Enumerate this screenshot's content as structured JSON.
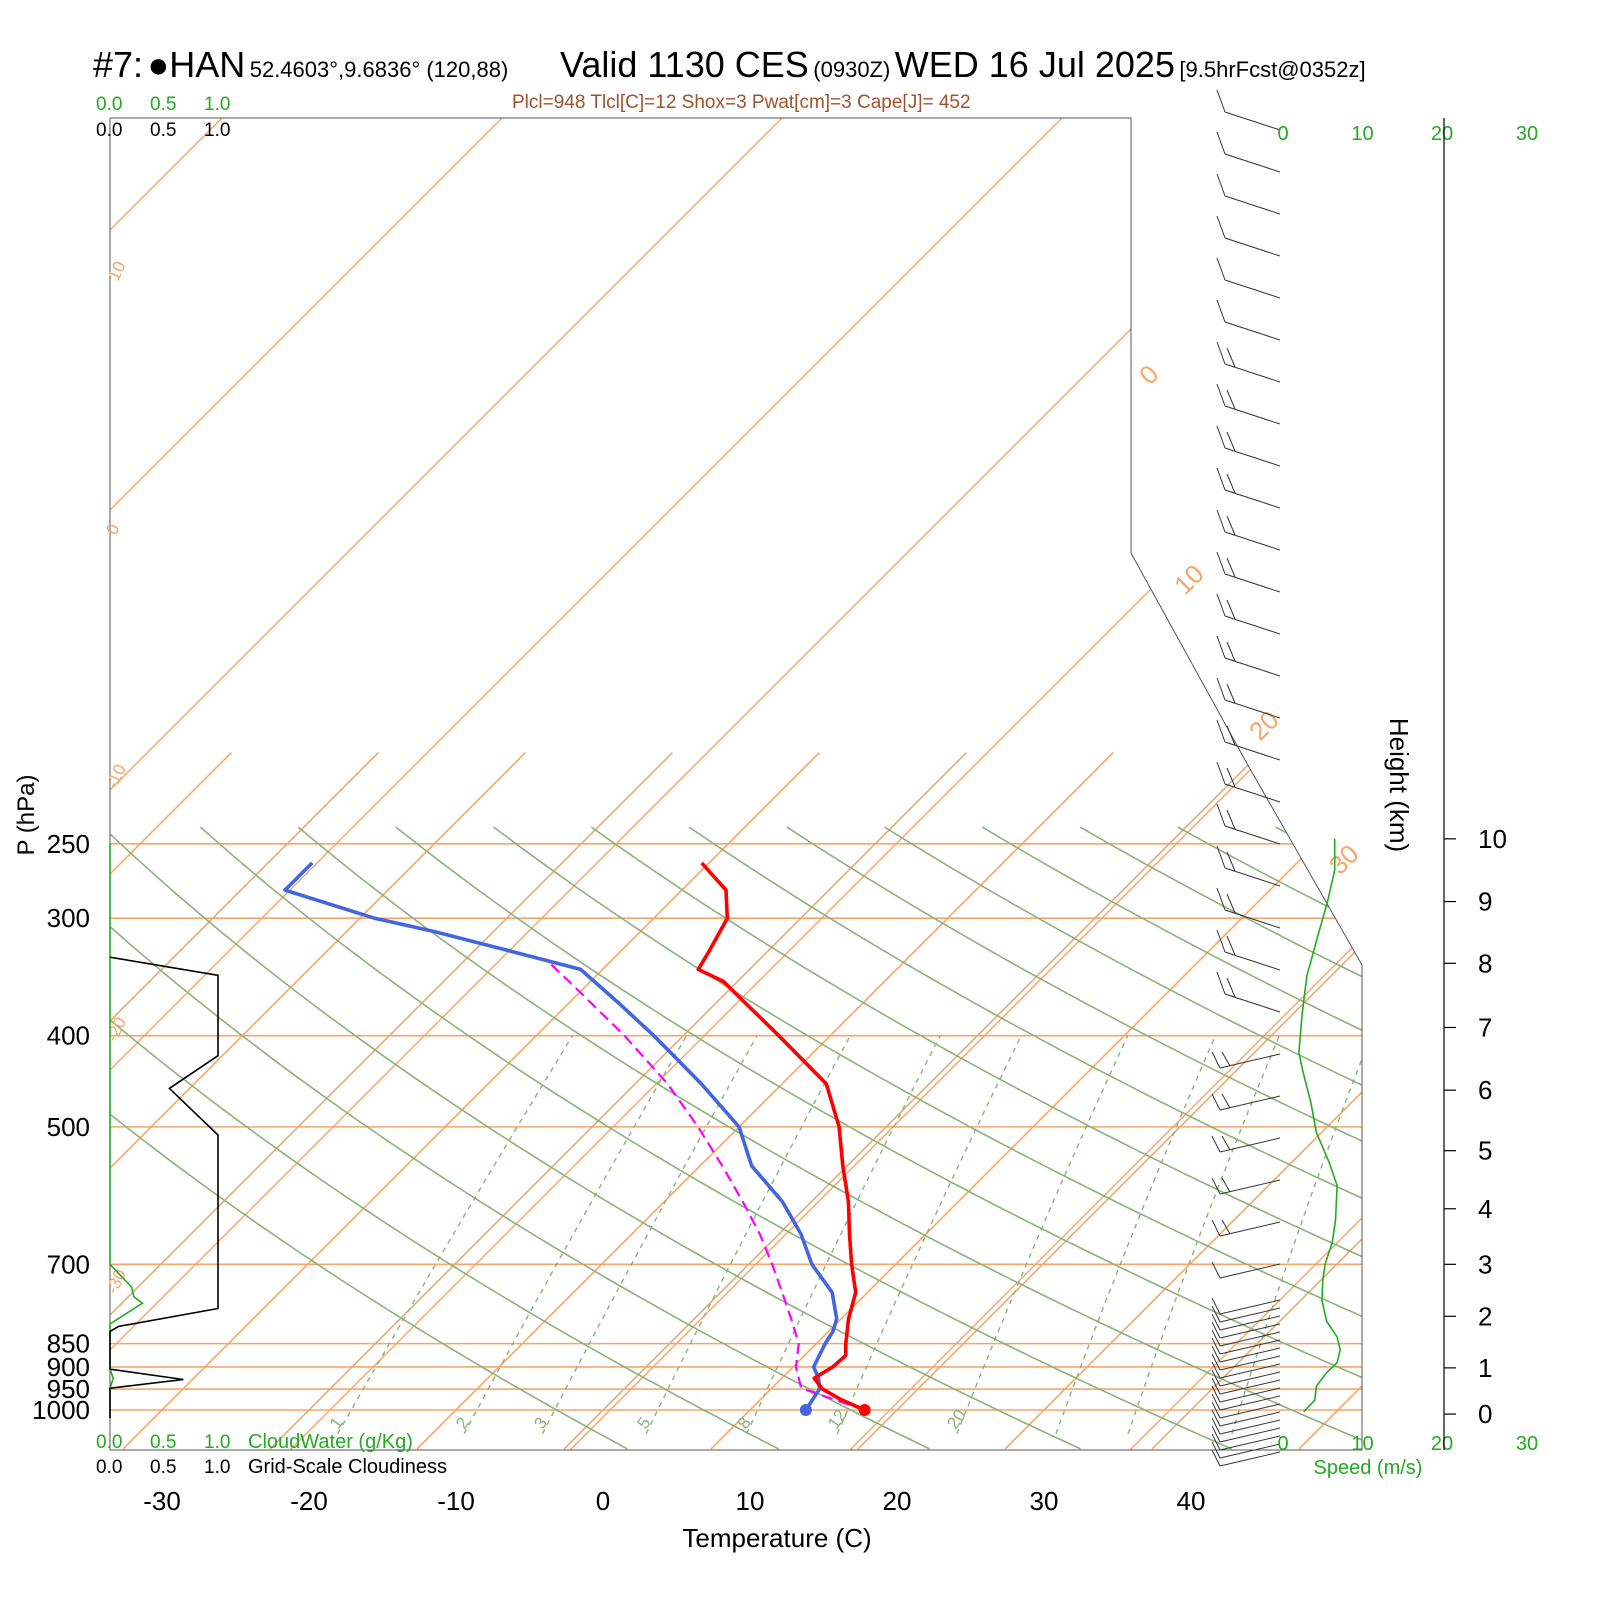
{
  "header": {
    "station_id": "#7:",
    "station_marker": "●",
    "station_name": "HAN",
    "coords": "52.4603°,9.6836° (120,88)",
    "valid": "Valid 1130 CES",
    "zulu": "(0930Z)",
    "date": "WED 16 Jul 2025",
    "forecast": "[9.5hrFcst@0352z]",
    "indices": "Plcl=948 Tlcl[C]=12 Shox=3 Pwat[cm]=3 Cape[J]= 452"
  },
  "colors": {
    "isotherm": "#f5a66b",
    "dry_adiabat": "#8ab37a",
    "mixing_ratio": "#8ab37a",
    "temperature": "#ff0000",
    "dewpoint": "#4466dd",
    "parcel": "#ff00ff",
    "cloud_water": "#22aa22",
    "cloudiness": "#000000",
    "wind_speed": "#22aa22",
    "indices": "#a0522d"
  },
  "chart_data": {
    "type": "skew-t log-p sounding",
    "xlabel": "Temperature (C)",
    "ylabel": "P (hPa)",
    "right_axis_label": "Height (km)",
    "temperature_ticks": [
      -30,
      -20,
      -10,
      0,
      10,
      20,
      30,
      40
    ],
    "pressure_ticks": [
      250,
      300,
      400,
      500,
      700,
      850,
      900,
      950,
      1000
    ],
    "height_ticks_km": [
      0,
      1,
      2,
      3,
      4,
      5,
      6,
      7,
      8,
      9,
      10
    ],
    "height_levels_hpa": [
      1010,
      902,
      795,
      700,
      611,
      530,
      457,
      392,
      335,
      288,
      247
    ],
    "isotherm_labels": [
      "10",
      "0",
      "-10",
      "-20",
      "-30",
      "0",
      "10",
      "20",
      "30"
    ],
    "mixing_ratio_labels": [
      "1",
      "2",
      "3",
      "5",
      "8",
      "12",
      "20"
    ],
    "temperature_profile": [
      {
        "p": 1000,
        "t": 17.8
      },
      {
        "p": 975,
        "t": 15.5
      },
      {
        "p": 950,
        "t": 13.5
      },
      {
        "p": 925,
        "t": 12.2
      },
      {
        "p": 900,
        "t": 12.7
      },
      {
        "p": 875,
        "t": 12.8
      },
      {
        "p": 850,
        "t": 12.0
      },
      {
        "p": 800,
        "t": 10.5
      },
      {
        "p": 750,
        "t": 9.2
      },
      {
        "p": 700,
        "t": 7.0
      },
      {
        "p": 650,
        "t": 4.8
      },
      {
        "p": 600,
        "t": 2.5
      },
      {
        "p": 550,
        "t": -0.3
      },
      {
        "p": 500,
        "t": -3.2
      },
      {
        "p": 450,
        "t": -7.0
      },
      {
        "p": 400,
        "t": -13.5
      },
      {
        "p": 350,
        "t": -21.0
      },
      {
        "p": 340,
        "t": -23.5
      },
      {
        "p": 325,
        "t": -24.0
      },
      {
        "p": 300,
        "t": -25.0
      },
      {
        "p": 280,
        "t": -27.0
      },
      {
        "p": 262,
        "t": -30.5
      }
    ],
    "dewpoint_profile": [
      {
        "p": 1000,
        "t": 13.8
      },
      {
        "p": 950,
        "t": 13.3
      },
      {
        "p": 925,
        "t": 12.5
      },
      {
        "p": 900,
        "t": 11.4
      },
      {
        "p": 850,
        "t": 10.6
      },
      {
        "p": 825,
        "t": 10.3
      },
      {
        "p": 800,
        "t": 9.7
      },
      {
        "p": 750,
        "t": 7.6
      },
      {
        "p": 700,
        "t": 4.3
      },
      {
        "p": 650,
        "t": 1.5
      },
      {
        "p": 600,
        "t": -2.0
      },
      {
        "p": 550,
        "t": -6.5
      },
      {
        "p": 500,
        "t": -10.0
      },
      {
        "p": 450,
        "t": -15.5
      },
      {
        "p": 400,
        "t": -22.0
      },
      {
        "p": 370,
        "t": -26.5
      },
      {
        "p": 340,
        "t": -31.5
      },
      {
        "p": 330,
        "t": -35.5
      },
      {
        "p": 310,
        "t": -44.0
      },
      {
        "p": 300,
        "t": -49.0
      },
      {
        "p": 280,
        "t": -57.0
      },
      {
        "p": 262,
        "t": -57.0
      }
    ],
    "parcel_profile": [
      {
        "p": 1000,
        "t": 17.8
      },
      {
        "p": 948,
        "t": 12.0
      },
      {
        "p": 900,
        "t": 10.2
      },
      {
        "p": 850,
        "t": 8.8
      },
      {
        "p": 800,
        "t": 6.6
      },
      {
        "p": 750,
        "t": 4.2
      },
      {
        "p": 700,
        "t": 1.6
      },
      {
        "p": 650,
        "t": -1.3
      },
      {
        "p": 600,
        "t": -4.7
      },
      {
        "p": 550,
        "t": -8.5
      },
      {
        "p": 500,
        "t": -12.8
      },
      {
        "p": 450,
        "t": -17.8
      },
      {
        "p": 400,
        "t": -24.0
      },
      {
        "p": 350,
        "t": -31.5
      },
      {
        "p": 335,
        "t": -34.0
      }
    ],
    "cloud_axis_labels": [
      "0.0",
      "0.5",
      "1.0"
    ],
    "cloud_water_label": "CloudWater (g/Kg)",
    "cloudiness_label": "Grid-Scale Cloudiness",
    "cloudiness_profile": [
      {
        "p": 1020,
        "v": 0.0
      },
      {
        "p": 948,
        "v": 0.0
      },
      {
        "p": 928,
        "v": 0.68
      },
      {
        "p": 905,
        "v": 0.0
      },
      {
        "p": 825,
        "v": 0.0
      },
      {
        "p": 815,
        "v": 0.08
      },
      {
        "p": 780,
        "v": 1.0
      },
      {
        "p": 510,
        "v": 1.0
      },
      {
        "p": 455,
        "v": 0.55
      },
      {
        "p": 420,
        "v": 1.0
      },
      {
        "p": 345,
        "v": 1.0
      },
      {
        "p": 330,
        "v": 0.0
      }
    ],
    "cloud_water_profile": [
      {
        "p": 1020,
        "v": 0.0
      },
      {
        "p": 948,
        "v": 0.0
      },
      {
        "p": 925,
        "v": 0.03
      },
      {
        "p": 905,
        "v": 0.0
      },
      {
        "p": 810,
        "v": 0.0
      },
      {
        "p": 770,
        "v": 0.3
      },
      {
        "p": 758,
        "v": 0.22
      },
      {
        "p": 740,
        "v": 0.2
      },
      {
        "p": 712,
        "v": 0.06
      },
      {
        "p": 700,
        "v": 0.0
      },
      {
        "p": 250,
        "v": 0.0
      }
    ],
    "wind_speed_ticks": [
      0,
      10,
      20,
      30
    ],
    "wind_speed_label": "Speed (m/s)",
    "wind_speed_profile": [
      {
        "h": 0.05,
        "s": 2.6
      },
      {
        "h": 0.3,
        "s": 4.0
      },
      {
        "h": 0.6,
        "s": 4.2
      },
      {
        "h": 0.9,
        "s": 5.5
      },
      {
        "h": 1.1,
        "s": 6.8
      },
      {
        "h": 1.35,
        "s": 7.2
      },
      {
        "h": 1.6,
        "s": 6.8
      },
      {
        "h": 1.9,
        "s": 5.5
      },
      {
        "h": 2.3,
        "s": 4.9
      },
      {
        "h": 2.7,
        "s": 5.0
      },
      {
        "h": 3.0,
        "s": 5.3
      },
      {
        "h": 3.4,
        "s": 6.2
      },
      {
        "h": 3.8,
        "s": 6.6
      },
      {
        "h": 4.4,
        "s": 6.8
      },
      {
        "h": 4.8,
        "s": 5.8
      },
      {
        "h": 5.3,
        "s": 4.2
      },
      {
        "h": 5.8,
        "s": 3.5
      },
      {
        "h": 6.3,
        "s": 2.5
      },
      {
        "h": 6.6,
        "s": 2.0
      },
      {
        "h": 7.2,
        "s": 2.4
      },
      {
        "h": 7.8,
        "s": 3.0
      },
      {
        "h": 8.5,
        "s": 4.5
      },
      {
        "h": 9.0,
        "s": 5.6
      },
      {
        "h": 9.5,
        "s": 6.5
      },
      {
        "h": 10.0,
        "s": 6.5
      }
    ]
  }
}
